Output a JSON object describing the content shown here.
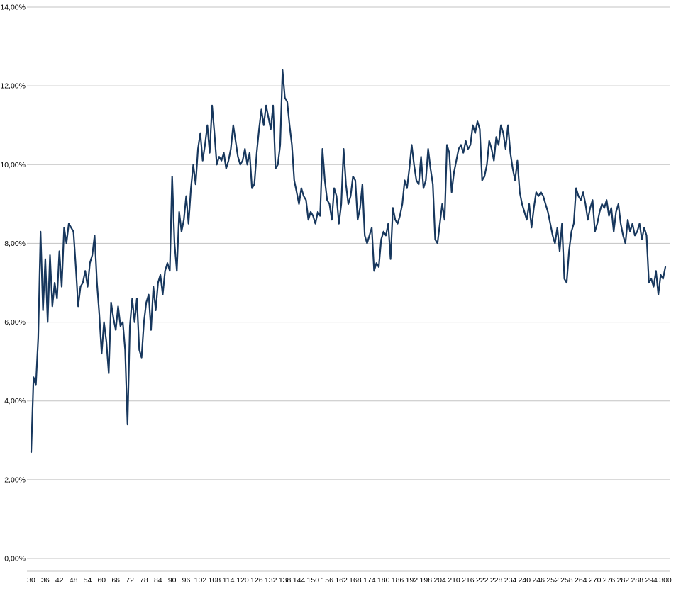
{
  "chart_data": {
    "type": "line",
    "title": "",
    "xlabel": "",
    "ylabel": "",
    "legend": "none",
    "grid": "horizontal",
    "ylim": [
      0,
      14
    ],
    "y_tick_values": [
      0,
      2,
      4,
      6,
      8,
      10,
      12,
      14
    ],
    "y_tick_labels": [
      "0,00%",
      "2,00%",
      "4,00%",
      "6,00%",
      "8,00%",
      "10,00%",
      "12,00%",
      "14,00%"
    ],
    "x_start": 30,
    "x_end": 300,
    "x_step": 1,
    "x_tick_labels": [
      30,
      36,
      42,
      48,
      54,
      60,
      66,
      72,
      78,
      84,
      90,
      96,
      102,
      108,
      114,
      120,
      126,
      132,
      138,
      144,
      150,
      156,
      162,
      168,
      174,
      180,
      186,
      192,
      198,
      204,
      210,
      216,
      222,
      228,
      234,
      240,
      246,
      252,
      258,
      264,
      270,
      276,
      282,
      288,
      294,
      300
    ],
    "series": [
      {
        "name": "series-1",
        "color": "#17375D",
        "values": [
          2.7,
          4.6,
          4.4,
          5.6,
          8.3,
          6.3,
          7.6,
          6.0,
          7.7,
          6.4,
          7.0,
          6.6,
          7.8,
          6.9,
          8.4,
          8.0,
          8.5,
          8.4,
          8.3,
          7.4,
          6.4,
          6.9,
          7.0,
          7.3,
          6.9,
          7.5,
          7.7,
          8.2,
          7.0,
          6.2,
          5.2,
          6.0,
          5.5,
          4.7,
          6.5,
          6.1,
          5.8,
          6.4,
          5.9,
          6.0,
          5.3,
          3.4,
          5.9,
          6.6,
          6.0,
          6.6,
          5.3,
          5.1,
          6.0,
          6.5,
          6.7,
          5.8,
          6.9,
          6.3,
          7.0,
          7.2,
          6.7,
          7.3,
          7.5,
          7.3,
          9.7,
          8.0,
          7.3,
          8.8,
          8.3,
          8.6,
          9.2,
          8.5,
          9.4,
          10.0,
          9.5,
          10.4,
          10.8,
          10.1,
          10.5,
          11.0,
          10.3,
          11.5,
          10.8,
          10.0,
          10.2,
          10.1,
          10.3,
          9.9,
          10.1,
          10.4,
          11.0,
          10.6,
          10.2,
          10.0,
          10.1,
          10.4,
          10.0,
          10.3,
          9.4,
          9.5,
          10.3,
          10.9,
          11.4,
          11.0,
          11.5,
          11.2,
          10.9,
          11.5,
          9.9,
          10.0,
          10.5,
          12.4,
          11.7,
          11.6,
          11.0,
          10.5,
          9.6,
          9.3,
          9.0,
          9.4,
          9.2,
          9.1,
          8.6,
          8.8,
          8.7,
          8.5,
          8.8,
          8.7,
          10.4,
          9.6,
          9.1,
          9.0,
          8.6,
          9.4,
          9.2,
          8.5,
          9.0,
          10.4,
          9.5,
          9.0,
          9.2,
          9.7,
          9.6,
          8.6,
          8.9,
          9.5,
          8.2,
          8.0,
          8.2,
          8.4,
          7.3,
          7.5,
          7.4,
          8.1,
          8.3,
          8.2,
          8.5,
          7.6,
          8.9,
          8.6,
          8.5,
          8.7,
          9.0,
          9.6,
          9.4,
          9.9,
          10.5,
          10.0,
          9.6,
          9.5,
          10.2,
          9.4,
          9.6,
          10.4,
          9.9,
          9.5,
          8.1,
          8.0,
          8.5,
          9.0,
          8.6,
          10.5,
          10.3,
          9.3,
          9.8,
          10.1,
          10.4,
          10.5,
          10.3,
          10.6,
          10.4,
          10.5,
          11.0,
          10.8,
          11.1,
          10.9,
          9.6,
          9.7,
          10.0,
          10.6,
          10.4,
          10.1,
          10.7,
          10.5,
          11.0,
          10.8,
          10.4,
          11.0,
          10.3,
          9.9,
          9.6,
          10.1,
          9.3,
          9.0,
          8.8,
          8.6,
          9.0,
          8.4,
          8.9,
          9.3,
          9.2,
          9.3,
          9.2,
          9.0,
          8.8,
          8.5,
          8.2,
          8.0,
          8.4,
          7.8,
          8.5,
          7.1,
          7.0,
          7.8,
          8.3,
          8.5,
          9.4,
          9.2,
          9.1,
          9.3,
          9.0,
          8.6,
          8.9,
          9.1,
          8.3,
          8.5,
          8.8,
          9.0,
          8.9,
          9.1,
          8.7,
          8.9,
          8.3,
          8.8,
          9.0,
          8.5,
          8.2,
          8.0,
          8.6,
          8.3,
          8.5,
          8.2,
          8.3,
          8.5,
          8.1,
          8.4,
          8.2,
          7.0,
          7.1,
          6.9,
          7.3,
          6.7,
          7.2,
          7.1,
          7.4
        ]
      }
    ]
  },
  "colors": {
    "background": "#FFFFFF",
    "gridline": "#C3C3C3",
    "axis_line": "#C3C3C3",
    "tick_text": "#000000",
    "series_line": "#17375D"
  }
}
